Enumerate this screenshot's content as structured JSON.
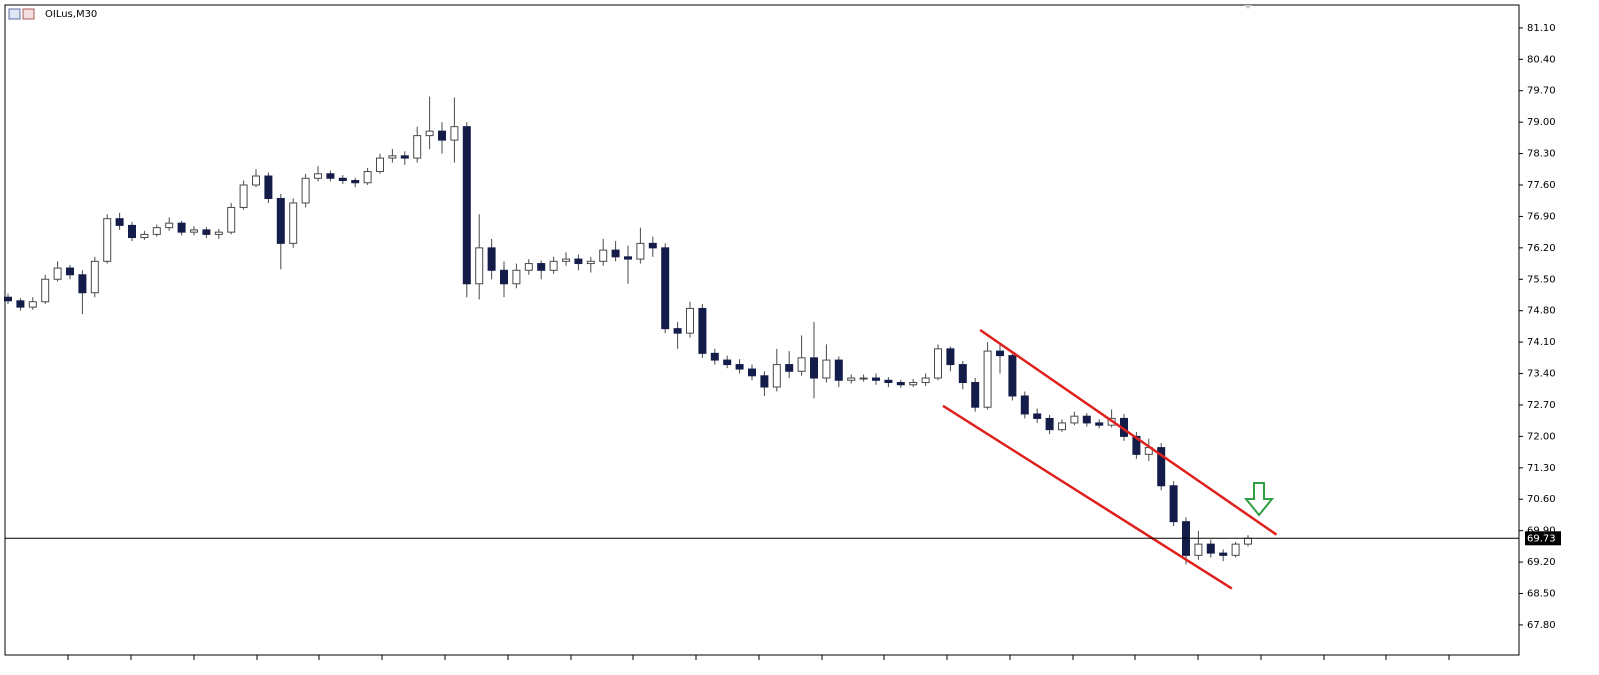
{
  "chart_data": {
    "type": "candlestick",
    "title": "OILus,M30",
    "up_color": "#ffffff",
    "down_color": "#141d4a",
    "wick_color": "#4a4a4a",
    "open": [
      75.1,
      75.02,
      74.88,
      75.0,
      75.5,
      75.75,
      75.6,
      75.2,
      75.9,
      76.85,
      76.7,
      76.43,
      76.5,
      76.65,
      76.75,
      76.55,
      76.6,
      76.5,
      76.55,
      77.1,
      77.6,
      77.8,
      77.3,
      76.3,
      77.2,
      77.75,
      77.85,
      77.75,
      77.7,
      77.65,
      77.9,
      78.2,
      78.25,
      78.2,
      78.7,
      78.8,
      78.6,
      78.9,
      75.4,
      76.2,
      75.7,
      75.4,
      75.7,
      75.85,
      75.7,
      75.9,
      75.95,
      75.85,
      75.9,
      76.15,
      76.0,
      75.95,
      76.3,
      76.2,
      74.4,
      74.3,
      74.85,
      73.85,
      73.7,
      73.6,
      73.5,
      73.35,
      73.1,
      73.6,
      73.45,
      73.75,
      73.3,
      73.7,
      73.25,
      73.3,
      73.3,
      73.25,
      73.2,
      73.15,
      73.2,
      73.3,
      73.95,
      73.6,
      73.2,
      72.65,
      73.9,
      73.8,
      72.9,
      72.5,
      72.4,
      72.15,
      72.3,
      72.45,
      72.3,
      72.25,
      72.4,
      72.0,
      71.6,
      71.75,
      70.9,
      70.1,
      69.35,
      69.6,
      69.4,
      69.35,
      69.6
    ],
    "high": [
      75.18,
      75.08,
      75.1,
      75.6,
      75.9,
      75.82,
      75.7,
      76.0,
      76.95,
      76.98,
      76.78,
      76.58,
      76.72,
      76.88,
      76.8,
      76.68,
      76.66,
      76.62,
      77.2,
      77.7,
      77.95,
      77.88,
      77.4,
      77.3,
      77.85,
      78.02,
      77.92,
      77.82,
      77.76,
      77.98,
      78.3,
      78.4,
      78.35,
      78.9,
      79.57,
      79.0,
      79.55,
      79.0,
      76.95,
      76.4,
      75.9,
      75.85,
      75.95,
      75.92,
      76.0,
      76.1,
      76.05,
      76.0,
      76.4,
      76.35,
      76.25,
      76.65,
      76.45,
      76.3,
      74.55,
      75.0,
      74.95,
      73.95,
      73.8,
      73.72,
      73.6,
      73.45,
      73.95,
      73.9,
      74.25,
      74.55,
      74.05,
      73.78,
      73.38,
      73.38,
      73.4,
      73.32,
      73.26,
      73.28,
      73.4,
      74.05,
      74.0,
      73.68,
      73.3,
      74.1,
      74.05,
      73.85,
      73.0,
      72.62,
      72.48,
      72.38,
      72.55,
      72.52,
      72.38,
      72.6,
      72.5,
      72.1,
      71.95,
      71.85,
      71.0,
      70.2,
      69.9,
      69.7,
      69.48,
      69.65,
      69.8
    ],
    "low": [
      74.95,
      74.8,
      74.82,
      74.95,
      75.45,
      75.5,
      74.72,
      75.1,
      75.85,
      76.6,
      76.35,
      76.38,
      76.45,
      76.58,
      76.48,
      76.48,
      76.42,
      76.4,
      76.5,
      77.05,
      77.55,
      77.2,
      75.72,
      76.2,
      77.1,
      77.68,
      77.68,
      77.62,
      77.55,
      77.6,
      77.85,
      78.1,
      78.05,
      78.1,
      78.4,
      78.3,
      78.1,
      75.1,
      75.05,
      75.5,
      75.1,
      75.3,
      75.6,
      75.5,
      75.62,
      75.8,
      75.7,
      75.65,
      75.8,
      75.9,
      75.4,
      75.85,
      76.0,
      74.3,
      73.95,
      74.2,
      73.75,
      73.6,
      73.52,
      73.4,
      73.25,
      72.9,
      73.0,
      73.3,
      73.35,
      72.85,
      73.2,
      73.1,
      73.18,
      73.22,
      73.15,
      73.1,
      73.08,
      73.1,
      73.12,
      73.25,
      73.45,
      73.05,
      72.55,
      72.6,
      73.4,
      72.8,
      72.4,
      72.3,
      72.05,
      72.1,
      72.25,
      72.22,
      72.18,
      72.2,
      71.9,
      71.5,
      71.45,
      70.8,
      70.0,
      69.15,
      69.25,
      69.3,
      69.22,
      69.3,
      69.55
    ],
    "close": [
      75.02,
      74.88,
      75.0,
      75.5,
      75.75,
      75.6,
      75.2,
      75.9,
      76.85,
      76.7,
      76.43,
      76.5,
      76.65,
      76.75,
      76.55,
      76.6,
      76.5,
      76.55,
      77.1,
      77.6,
      77.8,
      77.3,
      76.3,
      77.2,
      77.75,
      77.85,
      77.75,
      77.7,
      77.65,
      77.9,
      78.2,
      78.25,
      78.2,
      78.7,
      78.8,
      78.6,
      78.9,
      75.4,
      76.2,
      75.7,
      75.4,
      75.7,
      75.85,
      75.7,
      75.9,
      75.95,
      75.85,
      75.9,
      76.15,
      76.0,
      75.95,
      76.3,
      76.2,
      74.4,
      74.3,
      74.85,
      73.85,
      73.7,
      73.6,
      73.5,
      73.35,
      73.1,
      73.6,
      73.45,
      73.75,
      73.3,
      73.7,
      73.25,
      73.3,
      73.3,
      73.25,
      73.2,
      73.15,
      73.2,
      73.3,
      73.95,
      73.6,
      73.2,
      72.65,
      73.9,
      73.8,
      72.9,
      72.5,
      72.4,
      72.15,
      72.3,
      72.45,
      72.3,
      72.25,
      72.4,
      72.0,
      71.6,
      71.75,
      70.9,
      70.1,
      69.35,
      69.6,
      69.4,
      69.35,
      69.6,
      69.73
    ],
    "ylim": [
      67.13,
      81.61
    ],
    "yticks": [
      {
        "value": 81.1,
        "label": "81.10"
      },
      {
        "value": 80.4,
        "label": "80.40"
      },
      {
        "value": 79.7,
        "label": "79.70"
      },
      {
        "value": 79.0,
        "label": "79.00"
      },
      {
        "value": 78.3,
        "label": "78.30"
      },
      {
        "value": 77.6,
        "label": "77.60"
      },
      {
        "value": 76.9,
        "label": "76.90"
      },
      {
        "value": 76.2,
        "label": "76.20"
      },
      {
        "value": 75.5,
        "label": "75.50"
      },
      {
        "value": 74.8,
        "label": "74.80"
      },
      {
        "value": 74.1,
        "label": "74.10"
      },
      {
        "value": 73.4,
        "label": "73.40"
      },
      {
        "value": 72.7,
        "label": "72.70"
      },
      {
        "value": 72.0,
        "label": "72.00"
      },
      {
        "value": 71.3,
        "label": "71.30"
      },
      {
        "value": 70.6,
        "label": "70.60"
      },
      {
        "value": 69.9,
        "label": "69.90"
      },
      {
        "value": 69.2,
        "label": "69.20"
      },
      {
        "value": 68.5,
        "label": "68.50"
      },
      {
        "value": 67.8,
        "label": "67.80"
      }
    ],
    "current_price": 69.73,
    "trend_lines": [
      {
        "color": "#e0201c",
        "start": [
          78.4,
          74.37
        ],
        "end": [
          102.3,
          69.81
        ]
      },
      {
        "color": "#e0201c",
        "start": [
          75.4,
          72.68
        ],
        "end": [
          98.7,
          68.61
        ]
      }
    ]
  }
}
